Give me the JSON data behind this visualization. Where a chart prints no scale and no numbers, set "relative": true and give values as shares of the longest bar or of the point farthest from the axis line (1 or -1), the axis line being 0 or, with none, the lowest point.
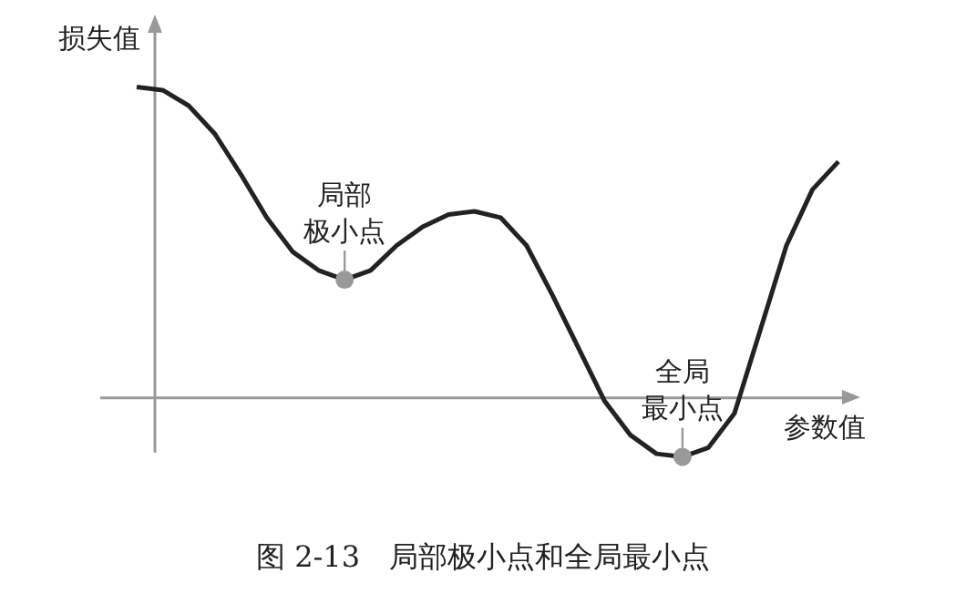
{
  "chart_data": {
    "type": "line",
    "relative": true,
    "title": "图 2-13　局部极小点和全局最小点",
    "xlabel": "参数值",
    "ylabel": "损失值",
    "marker": "none",
    "line_style": "solid",
    "categories": [
      null,
      null,
      null,
      null,
      null,
      null,
      null,
      null,
      null,
      null,
      null,
      null,
      null,
      null,
      null,
      null,
      null,
      null,
      null,
      null,
      null,
      null,
      null,
      null,
      null,
      null,
      null,
      null
    ],
    "series": [
      {
        "color": "#222222",
        "values": [
          1,
          0.99,
          0.94,
          0.85,
          0.72,
          0.58,
          0.47,
          0.41,
          0.38,
          0.41,
          0.49,
          0.55,
          0.59,
          0.6,
          0.58,
          0.49,
          0.33,
          0.16,
          -0.01,
          -0.12,
          -0.18,
          -0.19,
          -0.16,
          -0.05,
          0.22,
          0.49,
          0.67,
          0.76
        ]
      }
    ],
    "annotations": [
      {
        "text": "局部极小点",
        "y": 0.38
      },
      {
        "text": "全局最小点",
        "y": -0.19
      }
    ]
  }
}
